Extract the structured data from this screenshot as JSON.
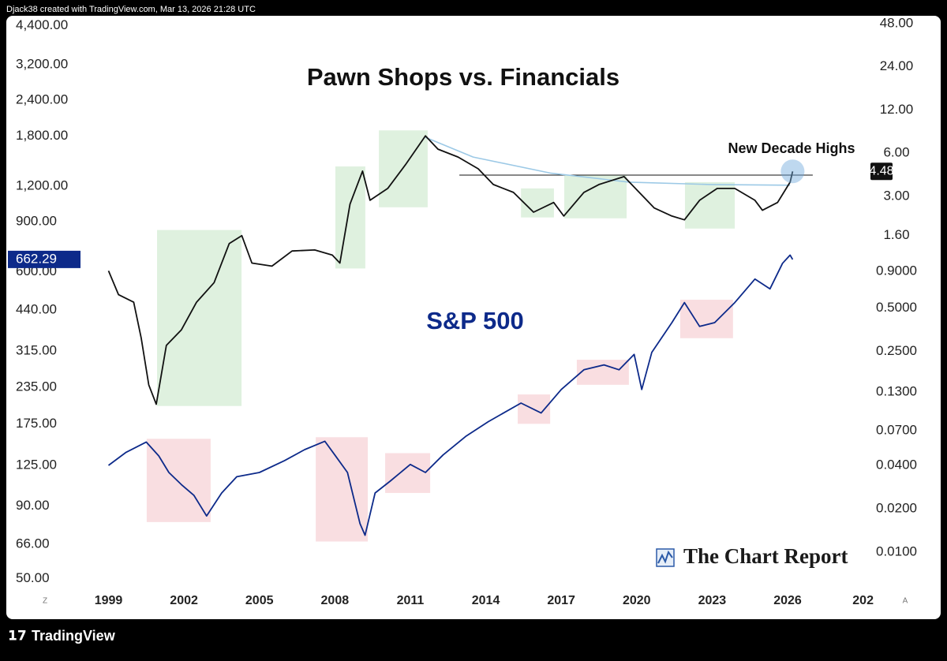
{
  "header": {
    "text": "Djack38 created with TradingView.com, Mar 13, 2026 21:28 UTC"
  },
  "footer": {
    "brand": "TradingView"
  },
  "controls": {
    "left": "Z",
    "right": "A"
  },
  "watermark": "The Chart Report",
  "chart_data": {
    "type": "line",
    "title": "Pawn Shops vs. Financials",
    "log_y": true,
    "log_y2": true,
    "grid": false,
    "xlim": [
      1995,
      2029.2
    ],
    "xticks": [
      1999,
      2002,
      2005,
      2008,
      2011,
      2014,
      2017,
      2020,
      2023,
      2026,
      {
        "value": 2029,
        "label": "202"
      }
    ],
    "ylim": [
      45,
      4700
    ],
    "yticks": [
      {
        "value": 4400,
        "label": "4,400.00"
      },
      {
        "value": 3200,
        "label": "3,200.00"
      },
      {
        "value": 2400,
        "label": "2,400.00"
      },
      {
        "value": 1800,
        "label": "1,800.00"
      },
      {
        "value": 1200,
        "label": "1,200.00"
      },
      {
        "value": 900,
        "label": "900.00"
      },
      {
        "value": 600,
        "label": "600.00"
      },
      {
        "value": 440,
        "label": "440.00"
      },
      {
        "value": 315,
        "label": "315.00"
      },
      {
        "value": 235,
        "label": "235.00"
      },
      {
        "value": 175,
        "label": "175.00"
      },
      {
        "value": 125,
        "label": "125.00"
      },
      {
        "value": 90,
        "label": "90.00"
      },
      {
        "value": 66,
        "label": "66.00"
      },
      {
        "value": 50,
        "label": "50.00"
      }
    ],
    "y2lim": [
      0.0053,
      53
    ],
    "y2ticks": [
      {
        "value": 48,
        "label": "48.00"
      },
      {
        "value": 24,
        "label": "24.00"
      },
      {
        "value": 12,
        "label": "12.00"
      },
      {
        "value": 6,
        "label": "6.00"
      },
      {
        "value": 3,
        "label": "3.00"
      },
      {
        "value": 1.6,
        "label": "1.60"
      },
      {
        "value": 0.9,
        "label": "0.9000"
      },
      {
        "value": 0.5,
        "label": "0.5000"
      },
      {
        "value": 0.25,
        "label": "0.2500"
      },
      {
        "value": 0.13,
        "label": "0.1300"
      },
      {
        "value": 0.07,
        "label": "0.0700"
      },
      {
        "value": 0.04,
        "label": "0.0400"
      },
      {
        "value": 0.02,
        "label": "0.0200"
      },
      {
        "value": 0.01,
        "label": "0.0100"
      }
    ],
    "regions": [
      {
        "x": [
          2000.93,
          2004.29
        ],
        "y": [
          0.104,
          1.75
        ],
        "axis": "y2",
        "color": "#dcefdc"
      },
      {
        "x": [
          2008.02,
          2009.21
        ],
        "y": [
          0.944,
          4.85
        ],
        "axis": "y2",
        "color": "#dcefdc"
      },
      {
        "x": [
          2009.75,
          2011.69
        ],
        "y": [
          2.52,
          8.65
        ],
        "axis": "y2",
        "color": "#dcefdc"
      },
      {
        "x": [
          2015.4,
          2016.71
        ],
        "y": [
          2.14,
          3.41
        ],
        "axis": "y2",
        "color": "#dcefdc"
      },
      {
        "x": [
          2017.12,
          2019.6
        ],
        "y": [
          2.11,
          4.22
        ],
        "axis": "y2",
        "color": "#dcefdc"
      },
      {
        "x": [
          2021.92,
          2023.9
        ],
        "y": [
          1.79,
          3.77
        ],
        "axis": "y2",
        "color": "#dcefdc"
      },
      {
        "x": [
          2000.52,
          2003.06
        ],
        "y": [
          79,
          155
        ],
        "axis": "y",
        "color": "#f8dade"
      },
      {
        "x": [
          2007.24,
          2009.31
        ],
        "y": [
          67.5,
          157
        ],
        "axis": "y",
        "color": "#f8dade"
      },
      {
        "x": [
          2010.0,
          2011.79
        ],
        "y": [
          100,
          138
        ],
        "axis": "y",
        "color": "#f8dade"
      },
      {
        "x": [
          2015.27,
          2016.56
        ],
        "y": [
          175,
          222
        ],
        "axis": "y",
        "color": "#f8dade"
      },
      {
        "x": [
          2017.62,
          2019.69
        ],
        "y": [
          240,
          294
        ],
        "axis": "y",
        "color": "#f8dade"
      },
      {
        "x": [
          2021.73,
          2023.83
        ],
        "y": [
          350,
          478
        ],
        "axis": "y",
        "color": "#f8dade"
      }
    ],
    "series": [
      {
        "name": "S&P 500",
        "color": "#0d2a8a",
        "axis": "y",
        "x": [
          1999.0,
          1999.7,
          2000.5,
          2001.0,
          2001.4,
          2001.9,
          2002.4,
          2002.9,
          2003.5,
          2004.1,
          2005.0,
          2006.0,
          2006.8,
          2007.6,
          2008.0,
          2008.5,
          2009.0,
          2009.2,
          2009.6,
          2010.2,
          2011.0,
          2011.6,
          2012.3,
          2013.2,
          2014.1,
          2015.4,
          2016.2,
          2017.0,
          2017.9,
          2018.7,
          2019.3,
          2019.9,
          2020.2,
          2020.6,
          2021.4,
          2021.9,
          2022.5,
          2023.1,
          2023.9,
          2024.7,
          2025.3,
          2025.8,
          2026.1,
          2026.2
        ],
        "values": [
          125,
          139,
          151,
          135,
          118,
          107,
          98,
          83,
          100,
          114,
          118,
          130,
          142,
          152,
          136,
          118,
          78,
          71,
          100,
          110,
          126,
          118,
          136,
          158,
          178,
          207,
          191,
          231,
          271,
          282,
          271,
          307,
          231,
          312,
          397,
          467,
          385,
          397,
          467,
          565,
          522,
          642,
          686,
          662.29
        ]
      },
      {
        "color": "#111111",
        "axis": "y2",
        "x": [
          1999.0,
          1999.4,
          2000.0,
          2000.3,
          2000.6,
          2000.9,
          2001.3,
          2001.9,
          2002.5,
          2003.2,
          2003.8,
          2004.3,
          2004.7,
          2005.5,
          2006.3,
          2007.2,
          2007.9,
          2008.2,
          2008.6,
          2009.1,
          2009.4,
          2010.1,
          2010.8,
          2011.6,
          2012.1,
          2012.9,
          2013.7,
          2014.3,
          2015.1,
          2015.9,
          2016.7,
          2017.1,
          2017.9,
          2018.5,
          2019.5,
          2020.1,
          2020.7,
          2021.4,
          2021.9,
          2022.5,
          2023.2,
          2023.9,
          2024.7,
          2025.0,
          2025.6,
          2026.1,
          2026.2
        ],
        "values": [
          0.91,
          0.62,
          0.55,
          0.31,
          0.146,
          0.107,
          0.275,
          0.353,
          0.549,
          0.752,
          1.41,
          1.6,
          1.03,
          0.98,
          1.25,
          1.27,
          1.17,
          1.03,
          2.65,
          4.5,
          2.82,
          3.41,
          4.97,
          7.93,
          6.4,
          5.64,
          4.67,
          3.63,
          3.2,
          2.33,
          2.72,
          2.19,
          3.2,
          3.63,
          4.12,
          3.2,
          2.49,
          2.19,
          2.06,
          2.82,
          3.41,
          3.41,
          2.82,
          2.4,
          2.72,
          3.77,
          4.48
        ]
      },
      {
        "color": "#9cc9e6",
        "axis": "y2",
        "x": [
          2011.6,
          2013.5,
          2016.6,
          2019.7,
          2022.9,
          2026.1
        ],
        "values": [
          7.74,
          5.64,
          4.35,
          3.77,
          3.63,
          3.59
        ]
      }
    ],
    "hline": {
      "value": 4.22,
      "x": [
        2012.95,
        2027.0
      ],
      "axis": "y2",
      "color": "#111111"
    },
    "annotation": "New Decade Highs"
  }
}
